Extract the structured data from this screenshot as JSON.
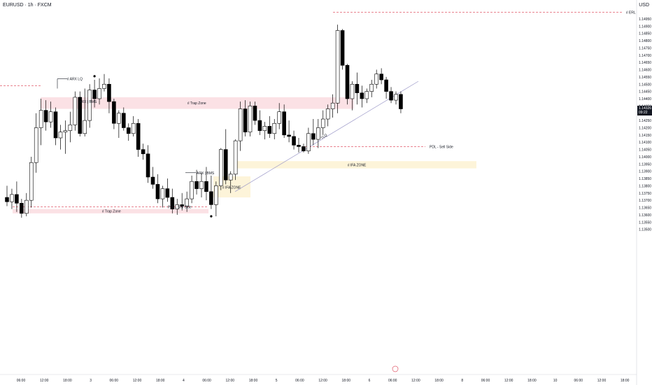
{
  "header": {
    "symbol": "EURUSD · 1h · FXCM",
    "currency": "USD"
  },
  "last_price": {
    "value": "1.14326",
    "countdown": "09:22"
  },
  "colors": {
    "up_body": "#ffffff",
    "down_body": "#000000",
    "wick": "#000000",
    "trap_zone": "#f7c9cf",
    "ifa_zone": "#fdf1cf",
    "sell_side_line": "#e05a6a",
    "trendline": "#9c99c8"
  },
  "chart_data": {
    "type": "candlestick",
    "y_axis": {
      "ylim": [
        1.125,
        1.1508
      ],
      "ticks": [
        "1.14950",
        "1.14900",
        "1.14850",
        "1.14800",
        "1.14750",
        "1.14700",
        "1.14650",
        "1.14600",
        "1.14550",
        "1.14500",
        "1.14450",
        "1.14400",
        "1.14350",
        "1.14300",
        "1.14250",
        "1.14200",
        "1.14150",
        "1.14100",
        "1.14050",
        "1.14000",
        "1.13950",
        "1.13900",
        "1.13850",
        "1.13800",
        "1.13750",
        "1.13700",
        "1.13650",
        "1.13600",
        "1.13550",
        "1.13500"
      ]
    },
    "x_axis": {
      "ticks": [
        "06:00",
        "12:00",
        "18:00",
        "3",
        "06:00",
        "12:00",
        "18:00",
        "4",
        "06:00",
        "12:00",
        "18:00",
        "5",
        "06:00",
        "12:00",
        "18:00",
        "6",
        "06:00",
        "12:00",
        "18:00",
        "8",
        "06:00",
        "12:00",
        "18:00",
        "10",
        "06:00",
        "12:00",
        "18:00"
      ]
    },
    "candles": [
      [
        1.1372,
        1.138,
        1.1366,
        1.1369
      ],
      [
        1.1369,
        1.1378,
        1.1364,
        1.1374
      ],
      [
        1.1374,
        1.1383,
        1.1362,
        1.1368
      ],
      [
        1.1368,
        1.1371,
        1.1358,
        1.1361
      ],
      [
        1.1361,
        1.1375,
        1.1359,
        1.137
      ],
      [
        1.137,
        1.14,
        1.1365,
        1.1396
      ],
      [
        1.1396,
        1.143,
        1.1389,
        1.142
      ],
      [
        1.142,
        1.144,
        1.1408,
        1.1432
      ],
      [
        1.1432,
        1.1439,
        1.1418,
        1.1424
      ],
      [
        1.1424,
        1.1438,
        1.142,
        1.1431
      ],
      [
        1.1431,
        1.1434,
        1.1408,
        1.1413
      ],
      [
        1.1413,
        1.1422,
        1.1405,
        1.1417
      ],
      [
        1.1417,
        1.1425,
        1.1402,
        1.1418
      ],
      [
        1.1418,
        1.1431,
        1.141,
        1.1422
      ],
      [
        1.1422,
        1.1445,
        1.1418,
        1.1441
      ],
      [
        1.1441,
        1.1445,
        1.1414,
        1.1416
      ],
      [
        1.1416,
        1.1447,
        1.1414,
        1.1425
      ],
      [
        1.1425,
        1.145,
        1.142,
        1.1446
      ],
      [
        1.1446,
        1.1453,
        1.1434,
        1.144
      ],
      [
        1.144,
        1.1454,
        1.1436,
        1.1447
      ],
      [
        1.1447,
        1.1457,
        1.1445,
        1.145
      ],
      [
        1.145,
        1.1454,
        1.143,
        1.1438
      ],
      [
        1.1438,
        1.144,
        1.1419,
        1.1423
      ],
      [
        1.1423,
        1.1432,
        1.1413,
        1.143
      ],
      [
        1.143,
        1.1434,
        1.1418,
        1.142
      ],
      [
        1.142,
        1.1423,
        1.1411,
        1.1416
      ],
      [
        1.1416,
        1.1428,
        1.1414,
        1.1423
      ],
      [
        1.1423,
        1.1426,
        1.14,
        1.1405
      ],
      [
        1.1405,
        1.1409,
        1.1398,
        1.1402
      ],
      [
        1.1402,
        1.1408,
        1.1382,
        1.1386
      ],
      [
        1.1386,
        1.1393,
        1.1378,
        1.1381
      ],
      [
        1.1381,
        1.1388,
        1.1368,
        1.1371
      ],
      [
        1.1371,
        1.138,
        1.1365,
        1.1378
      ],
      [
        1.1378,
        1.1385,
        1.1369,
        1.1372
      ],
      [
        1.1372,
        1.1378,
        1.1361,
        1.1364
      ],
      [
        1.1364,
        1.1371,
        1.136,
        1.1367
      ],
      [
        1.1367,
        1.1375,
        1.1363,
        1.1366
      ],
      [
        1.1366,
        1.1376,
        1.1362,
        1.1371
      ],
      [
        1.1371,
        1.1387,
        1.1368,
        1.1383
      ],
      [
        1.1383,
        1.1391,
        1.1374,
        1.1378
      ],
      [
        1.1378,
        1.1389,
        1.1372,
        1.1383
      ],
      [
        1.1383,
        1.1393,
        1.137,
        1.1376
      ],
      [
        1.1376,
        1.1387,
        1.1364,
        1.1367
      ],
      [
        1.1367,
        1.1383,
        1.1359,
        1.138
      ],
      [
        1.138,
        1.1406,
        1.1377,
        1.1405
      ],
      [
        1.1405,
        1.1419,
        1.1381,
        1.1384
      ],
      [
        1.1384,
        1.139,
        1.1375,
        1.1388
      ],
      [
        1.1388,
        1.1412,
        1.1384,
        1.1411
      ],
      [
        1.1411,
        1.1438,
        1.1404,
        1.1433
      ],
      [
        1.1433,
        1.1439,
        1.1414,
        1.1417
      ],
      [
        1.1417,
        1.1438,
        1.1414,
        1.1435
      ],
      [
        1.1435,
        1.1438,
        1.1422,
        1.1425
      ],
      [
        1.1425,
        1.1432,
        1.1415,
        1.1418
      ],
      [
        1.1418,
        1.1424,
        1.1412,
        1.1421
      ],
      [
        1.1421,
        1.1428,
        1.1413,
        1.1416
      ],
      [
        1.1416,
        1.1426,
        1.1412,
        1.1423
      ],
      [
        1.1423,
        1.1437,
        1.1419,
        1.1431
      ],
      [
        1.1431,
        1.1436,
        1.1413,
        1.1415
      ],
      [
        1.1415,
        1.1425,
        1.141,
        1.1414
      ],
      [
        1.1414,
        1.1418,
        1.1405,
        1.1408
      ],
      [
        1.1408,
        1.1413,
        1.1403,
        1.1407
      ],
      [
        1.1407,
        1.1409,
        1.1403,
        1.1404
      ],
      [
        1.1404,
        1.142,
        1.1402,
        1.1416
      ],
      [
        1.1416,
        1.1426,
        1.1408,
        1.1412
      ],
      [
        1.1412,
        1.1426,
        1.1406,
        1.142
      ],
      [
        1.142,
        1.1432,
        1.1415,
        1.1426
      ],
      [
        1.1426,
        1.1436,
        1.1421,
        1.1433
      ],
      [
        1.1433,
        1.1443,
        1.1427,
        1.1437
      ],
      [
        1.1437,
        1.1491,
        1.143,
        1.1487
      ],
      [
        1.1487,
        1.1488,
        1.146,
        1.1463
      ],
      [
        1.1463,
        1.1464,
        1.1436,
        1.144
      ],
      [
        1.144,
        1.1452,
        1.1432,
        1.145
      ],
      [
        1.145,
        1.1458,
        1.1436,
        1.1444
      ],
      [
        1.1444,
        1.1449,
        1.1434,
        1.144
      ],
      [
        1.144,
        1.1447,
        1.1437,
        1.1445
      ],
      [
        1.1445,
        1.1453,
        1.1441,
        1.145
      ],
      [
        1.145,
        1.146,
        1.1447,
        1.1457
      ],
      [
        1.1457,
        1.1461,
        1.145,
        1.1453
      ],
      [
        1.1453,
        1.1455,
        1.144,
        1.1445
      ],
      [
        1.1445,
        1.1448,
        1.1437,
        1.1439
      ],
      [
        1.1439,
        1.1445,
        1.1436,
        1.1443
      ],
      [
        1.1443,
        1.1445,
        1.143,
        1.1433
      ]
    ],
    "annotations": {
      "erl": "ERL",
      "trap_zone_top": "Trap Zone",
      "trap_zone_bottom": "Trap Zone",
      "arx_lq": "ARX LQ",
      "arx_bms_1": "ARX | BMS",
      "arx_bms_2": "ARX | BMS",
      "ifa_zone_small": "IFA ZONE",
      "ifa_zone_large": "IFA ZONE",
      "pdl_sell_side_top": "PDL - Sell Side",
      "pdl_sell_side_bottom": "PDL - Sell Side",
      "tlq": "TLQ"
    }
  }
}
